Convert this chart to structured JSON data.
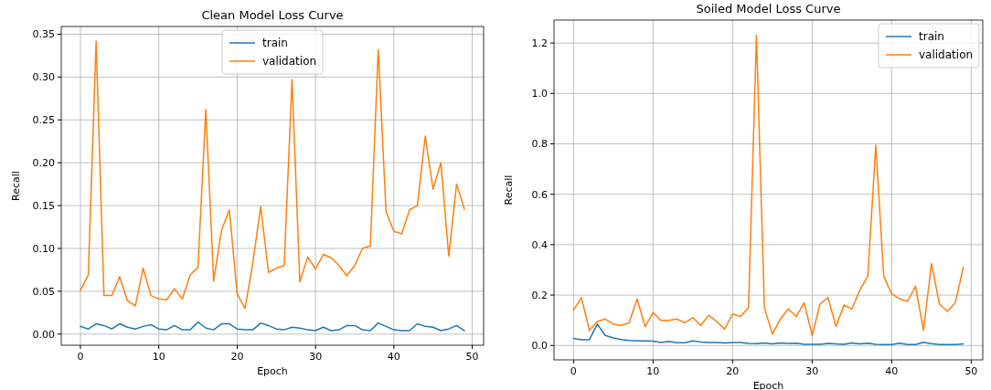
{
  "chart_data": [
    {
      "type": "line",
      "title": "Clean Model Loss Curve",
      "xlabel": "Epoch",
      "ylabel": "Recall",
      "x": [
        0,
        1,
        2,
        3,
        4,
        5,
        6,
        7,
        8,
        9,
        10,
        11,
        12,
        13,
        14,
        15,
        16,
        17,
        18,
        19,
        20,
        21,
        22,
        23,
        24,
        25,
        26,
        27,
        28,
        29,
        30,
        31,
        32,
        33,
        34,
        35,
        36,
        37,
        38,
        39,
        40,
        41,
        42,
        43,
        44,
        45,
        46,
        47,
        48,
        49
      ],
      "series": [
        {
          "name": "train",
          "color": "#1f77b4",
          "values": [
            0.009,
            0.006,
            0.012,
            0.01,
            0.006,
            0.012,
            0.008,
            0.006,
            0.009,
            0.011,
            0.006,
            0.005,
            0.01,
            0.005,
            0.005,
            0.014,
            0.007,
            0.005,
            0.012,
            0.012,
            0.006,
            0.005,
            0.005,
            0.013,
            0.01,
            0.006,
            0.005,
            0.008,
            0.007,
            0.005,
            0.004,
            0.008,
            0.004,
            0.005,
            0.01,
            0.01,
            0.005,
            0.004,
            0.013,
            0.009,
            0.005,
            0.004,
            0.004,
            0.012,
            0.009,
            0.008,
            0.004,
            0.006,
            0.01,
            0.004
          ]
        },
        {
          "name": "validation",
          "color": "#ff7f0e",
          "values": [
            0.051,
            0.069,
            0.342,
            0.045,
            0.045,
            0.067,
            0.039,
            0.033,
            0.077,
            0.045,
            0.041,
            0.04,
            0.053,
            0.041,
            0.069,
            0.078,
            0.262,
            0.062,
            0.121,
            0.145,
            0.047,
            0.03,
            0.083,
            0.149,
            0.072,
            0.077,
            0.08,
            0.297,
            0.061,
            0.09,
            0.076,
            0.093,
            0.089,
            0.08,
            0.068,
            0.08,
            0.1,
            0.103,
            0.332,
            0.143,
            0.12,
            0.117,
            0.145,
            0.15,
            0.231,
            0.169,
            0.2,
            0.091,
            0.175,
            0.146
          ]
        }
      ],
      "xlim": [
        -2.45,
        51.45
      ],
      "xticks": [
        0,
        10,
        20,
        30,
        40,
        50
      ],
      "ylim": [
        -0.013,
        0.359
      ],
      "yticks": [
        {
          "value": 0,
          "label": "0.00"
        },
        {
          "value": 0.05,
          "label": "0.05"
        },
        {
          "value": 0.1,
          "label": "0.10"
        },
        {
          "value": 0.15,
          "label": "0.15"
        },
        {
          "value": 0.2,
          "label": "0.20"
        },
        {
          "value": 0.25,
          "label": "0.25"
        },
        {
          "value": 0.3,
          "label": "0.30"
        },
        {
          "value": 0.35,
          "label": "0.35"
        }
      ],
      "grid": true,
      "legend": "top center"
    },
    {
      "type": "line",
      "title": "Soiled Model Loss Curve",
      "xlabel": "Epoch",
      "ylabel": "Recall",
      "x": [
        0,
        1,
        2,
        3,
        4,
        5,
        6,
        7,
        8,
        9,
        10,
        11,
        12,
        13,
        14,
        15,
        16,
        17,
        18,
        19,
        20,
        21,
        22,
        23,
        24,
        25,
        26,
        27,
        28,
        29,
        30,
        31,
        32,
        33,
        34,
        35,
        36,
        37,
        38,
        39,
        40,
        41,
        42,
        43,
        44,
        45,
        46,
        47,
        48,
        49
      ],
      "series": [
        {
          "name": "train",
          "color": "#1f77b4",
          "values": [
            0.028,
            0.023,
            0.023,
            0.085,
            0.04,
            0.03,
            0.024,
            0.02,
            0.018,
            0.018,
            0.017,
            0.012,
            0.016,
            0.011,
            0.011,
            0.018,
            0.014,
            0.012,
            0.012,
            0.01,
            0.012,
            0.012,
            0.008,
            0.007,
            0.01,
            0.006,
            0.01,
            0.008,
            0.009,
            0.005,
            0.005,
            0.005,
            0.008,
            0.006,
            0.005,
            0.01,
            0.006,
            0.009,
            0.005,
            0.004,
            0.004,
            0.009,
            0.004,
            0.004,
            0.013,
            0.007,
            0.004,
            0.004,
            0.004,
            0.006
          ]
        },
        {
          "name": "validation",
          "color": "#ff7f0e",
          "values": [
            0.14,
            0.19,
            0.06,
            0.095,
            0.105,
            0.085,
            0.08,
            0.09,
            0.185,
            0.075,
            0.13,
            0.1,
            0.1,
            0.105,
            0.09,
            0.11,
            0.08,
            0.12,
            0.095,
            0.065,
            0.125,
            0.115,
            0.15,
            1.23,
            0.15,
            0.045,
            0.105,
            0.145,
            0.115,
            0.17,
            0.04,
            0.165,
            0.19,
            0.075,
            0.16,
            0.145,
            0.22,
            0.275,
            0.795,
            0.275,
            0.205,
            0.185,
            0.175,
            0.235,
            0.06,
            0.325,
            0.165,
            0.135,
            0.17,
            0.31
          ]
        }
      ],
      "xlim": [
        -2.45,
        51.45
      ],
      "xticks": [
        0,
        10,
        20,
        30,
        40,
        50
      ],
      "ylim": [
        -0.057,
        1.291
      ],
      "yticks": [
        {
          "value": 0,
          "label": "0.0"
        },
        {
          "value": 0.2,
          "label": "0.2"
        },
        {
          "value": 0.4,
          "label": "0.4"
        },
        {
          "value": 0.6,
          "label": "0.6"
        },
        {
          "value": 0.8,
          "label": "0.8"
        },
        {
          "value": 1.0,
          "label": "1.0"
        },
        {
          "value": 1.2,
          "label": "1.2"
        }
      ],
      "grid": true,
      "legend": "top right"
    }
  ]
}
